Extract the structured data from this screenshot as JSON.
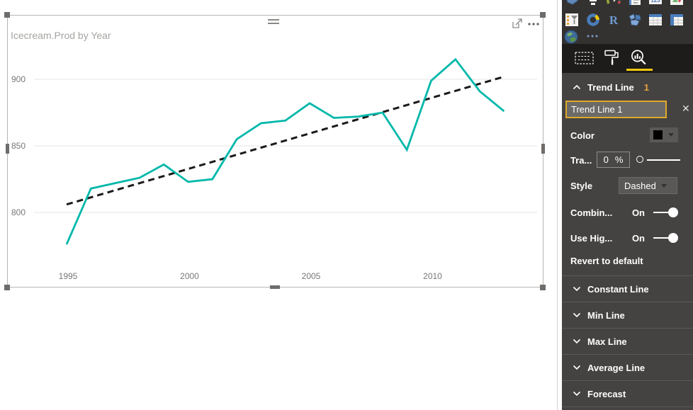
{
  "chart": {
    "title": "Icecream.Prod by Year"
  },
  "chart_data": {
    "type": "line",
    "title": "Icecream.Prod by Year",
    "series_name": "Icecream.Prod",
    "xlabel": "Year",
    "ylabel": "",
    "x": [
      1995,
      1996,
      1997,
      1998,
      1999,
      2000,
      2001,
      2002,
      2003,
      2004,
      2005,
      2006,
      2007,
      2008,
      2009,
      2010,
      2011,
      2012,
      2013
    ],
    "values": [
      776,
      818,
      822,
      826,
      836,
      823,
      825,
      855,
      867,
      869,
      882,
      871,
      872,
      875,
      847,
      899,
      915,
      891,
      876
    ],
    "trend_line": {
      "x_start": 1995,
      "y_start": 806,
      "x_end": 2013,
      "y_end": 902,
      "style": "dashed",
      "color": "#1a1a1a"
    },
    "y_ticks": [
      900,
      850,
      800
    ],
    "x_ticks": [
      1995,
      2000,
      2005,
      2010
    ],
    "ylim": [
      770,
      920
    ],
    "grid": true,
    "legend": "none",
    "line_color": "#01B8AA"
  },
  "visual": {
    "focus_icon": "focus-mode",
    "more_icon": "more-options-ellipsis"
  },
  "panel": {
    "gallery_icons": [
      "filled-map",
      "funnel",
      "gauge",
      "multi-row-card",
      "card",
      "kpi",
      "slicer",
      "donut-chart",
      "r-script",
      "shape-map",
      "table",
      "matrix",
      "arcgis-map",
      "more-visuals"
    ],
    "tabs": [
      {
        "id": "fields"
      },
      {
        "id": "format"
      },
      {
        "id": "analytics",
        "active": true
      }
    ],
    "trend_line": {
      "header": "Trend Line",
      "count": "1",
      "name_value": "Trend Line 1",
      "delete_icon": "✕",
      "color_label": "Color",
      "transparency_label": "Tra...",
      "transparency_value": "0",
      "transparency_unit": "%",
      "style_label": "Style",
      "style_value": "Dashed",
      "combine_label": "Combin...",
      "combine_state": "On",
      "highlight_label": "Use Hig...",
      "highlight_state": "On",
      "revert_label": "Revert to default"
    },
    "collapsed_sections": [
      {
        "label": "Constant Line"
      },
      {
        "label": "Min Line"
      },
      {
        "label": "Max Line"
      },
      {
        "label": "Average Line"
      },
      {
        "label": "Forecast"
      }
    ]
  },
  "colors": {
    "accent_yellow": "#F2C80F",
    "count_orange": "#E8A33D",
    "teal": "#01B8AA",
    "trend_black": "#1A1A1A",
    "panel_bg": "#454342",
    "tabbar_bg": "#1D1C1B"
  }
}
